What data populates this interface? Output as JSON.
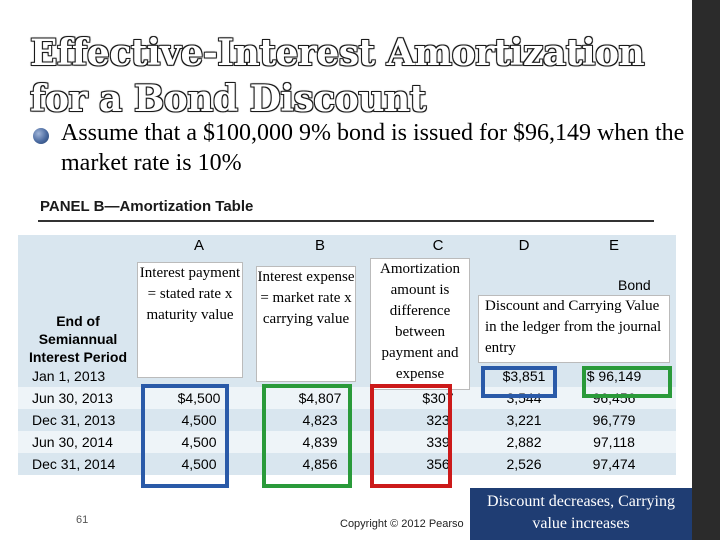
{
  "slide": {
    "title": "Effective-Interest Amortization for a Bond Discount",
    "bullet": "Assume that a $100,000 9% bond is issued for $96,149 when the market rate is 10%",
    "page_number": "61",
    "copyright": "Copyright © 2012 Pearso",
    "footer_note": "Discount decreases, Carrying value increases",
    "colors": {
      "blue_frame": "#2a5aa8",
      "green_frame": "#2a9a3a",
      "red_frame": "#cc1a1a",
      "footer_bg": "#1f3d73"
    }
  },
  "panel": {
    "title": "PANEL B—Amortization Table",
    "column_letters": [
      "A",
      "B",
      "C",
      "D",
      "E"
    ],
    "row_header_label": "End of Semiannual Interest Period",
    "e_header_partial": "Bond",
    "rows": [
      {
        "period": "Jan 1, 2013",
        "a": "",
        "b": "",
        "c": "",
        "d": "$3,851",
        "e": "$ 96,149"
      },
      {
        "period": "Jun 30, 2013",
        "a": "$4,500",
        "b": "$4,807",
        "c": "$307",
        "d": "3,544",
        "e": "96,456"
      },
      {
        "period": "Dec 31, 2013",
        "a": "4,500",
        "b": "4,823",
        "c": "323",
        "d": "3,221",
        "e": "96,779"
      },
      {
        "period": "Jun 30, 2014",
        "a": "4,500",
        "b": "4,839",
        "c": "339",
        "d": "2,882",
        "e": "97,118"
      },
      {
        "period": "Dec 31, 2014",
        "a": "4,500",
        "b": "4,856",
        "c": "356",
        "d": "2,526",
        "e": "97,474"
      }
    ]
  },
  "callouts": {
    "interest_payment": "Interest payment = stated rate x maturity value",
    "interest_expense": "Interest expense = market rate x carrying value",
    "amortization": "Amortization amount is difference between payment and expense",
    "discount_carrying": "Discount and Carrying Value in the ledger from the journal entry"
  }
}
